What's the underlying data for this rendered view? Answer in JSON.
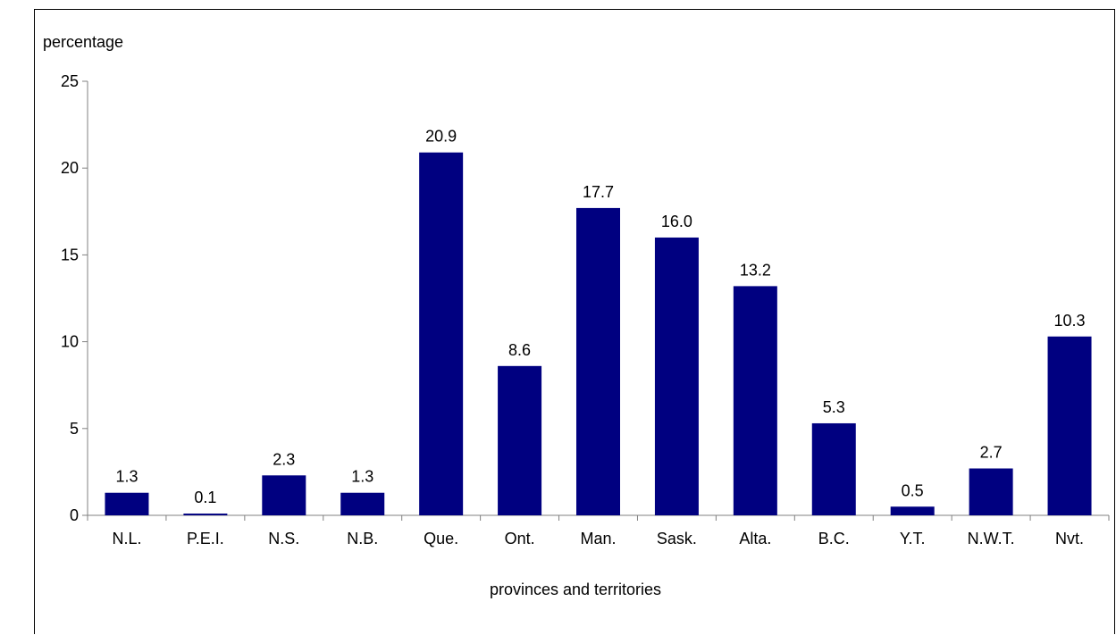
{
  "chart_data": {
    "type": "bar",
    "ylabel": "percentage",
    "xlabel": "provinces and territories",
    "categories": [
      "N.L.",
      "P.E.I.",
      "N.S.",
      "N.B.",
      "Que.",
      "Ont.",
      "Man.",
      "Sask.",
      "Alta.",
      "B.C.",
      "Y.T.",
      "N.W.T.",
      "Nvt."
    ],
    "values": [
      1.3,
      0.1,
      2.3,
      1.3,
      20.9,
      8.6,
      17.7,
      16.0,
      13.2,
      5.3,
      0.5,
      2.7,
      10.3
    ],
    "value_labels": [
      "1.3",
      "0.1",
      "2.3",
      "1.3",
      "20.9",
      "8.6",
      "17.7",
      "16.0",
      "13.2",
      "5.3",
      "0.5",
      "2.7",
      "10.3"
    ],
    "ylim": [
      0,
      25
    ],
    "yticks": [
      "0",
      "5",
      "10",
      "15",
      "20",
      "25"
    ],
    "grid": false,
    "legend": "none",
    "bar_color": "#000080"
  }
}
